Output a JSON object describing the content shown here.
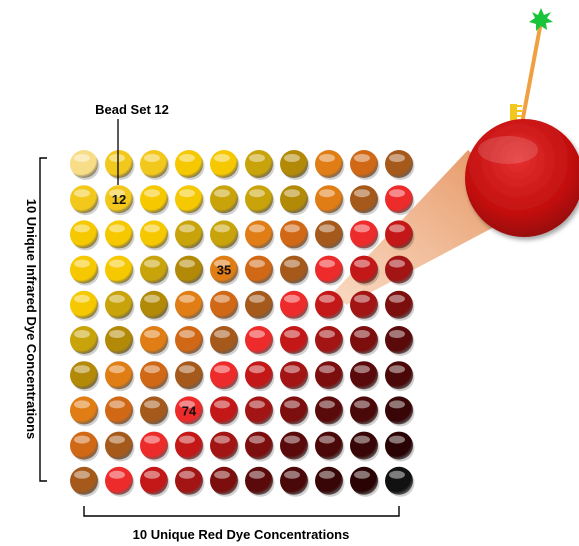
{
  "callout_label": "Bead Set 12",
  "x_axis_label": "10 Unique Red Dye Concentrations",
  "y_axis_label": "10 Unique Infrared Dye Concentrations",
  "grid": {
    "rows": 10,
    "cols": 10,
    "colors": [
      [
        "#f7dd87",
        "#f2c81c",
        "#f2c81c",
        "#f5c800",
        "#f5c800",
        "#c9a30a",
        "#b38a08",
        "#e07d15",
        "#d06816",
        "#a55a1c"
      ],
      [
        "#f2c81c",
        "#f2c81c",
        "#f5c800",
        "#f5c800",
        "#c9a30a",
        "#c9a30a",
        "#b38a08",
        "#e07d15",
        "#a55a1c",
        "#ee2b2b"
      ],
      [
        "#f5c800",
        "#f5c800",
        "#f5c800",
        "#c9a30a",
        "#c9a30a",
        "#e07d15",
        "#d06816",
        "#a55a1c",
        "#ee2b2b",
        "#c41818"
      ],
      [
        "#f5c800",
        "#f5c800",
        "#c9a30a",
        "#b38a08",
        "#e07d15",
        "#d06816",
        "#a55a1c",
        "#ee2b2b",
        "#c41818",
        "#a31414"
      ],
      [
        "#f5c800",
        "#c9a30a",
        "#b38a08",
        "#e07d15",
        "#d06816",
        "#a55a1c",
        "#ee2b2b",
        "#c41818",
        "#a31414",
        "#7c0e0e"
      ],
      [
        "#c9a30a",
        "#b38a08",
        "#e07d15",
        "#d06816",
        "#a55a1c",
        "#ee2b2b",
        "#c41818",
        "#a31414",
        "#7c0e0e",
        "#5a0a0a"
      ],
      [
        "#b38a08",
        "#e07d15",
        "#d06816",
        "#a55a1c",
        "#ee2b2b",
        "#c41818",
        "#a31414",
        "#7c0e0e",
        "#5a0a0a",
        "#4a0808"
      ],
      [
        "#e07d15",
        "#d06816",
        "#a55a1c",
        "#ee2b2b",
        "#c41818",
        "#a31414",
        "#7c0e0e",
        "#5a0a0a",
        "#4a0808",
        "#380606"
      ],
      [
        "#d06816",
        "#a55a1c",
        "#ee2b2b",
        "#c41818",
        "#a31414",
        "#7c0e0e",
        "#5a0a0a",
        "#4a0808",
        "#380606",
        "#2a0404"
      ],
      [
        "#a55a1c",
        "#ee2b2b",
        "#c41818",
        "#a31414",
        "#7c0e0e",
        "#5a0a0a",
        "#4a0808",
        "#380606",
        "#2a0404",
        "#111111"
      ]
    ],
    "labels": [
      {
        "row": 1,
        "col": 1,
        "text": "12"
      },
      {
        "row": 3,
        "col": 4,
        "text": "35"
      },
      {
        "row": 7,
        "col": 3,
        "text": "74"
      }
    ]
  },
  "magnified_bead": {
    "color": "#d01212",
    "source_row": 4,
    "source_col": 7
  },
  "probe": {
    "star_color": "#19c43a",
    "stem_color": "#f0a040",
    "comb_color": "#f2c81c"
  }
}
